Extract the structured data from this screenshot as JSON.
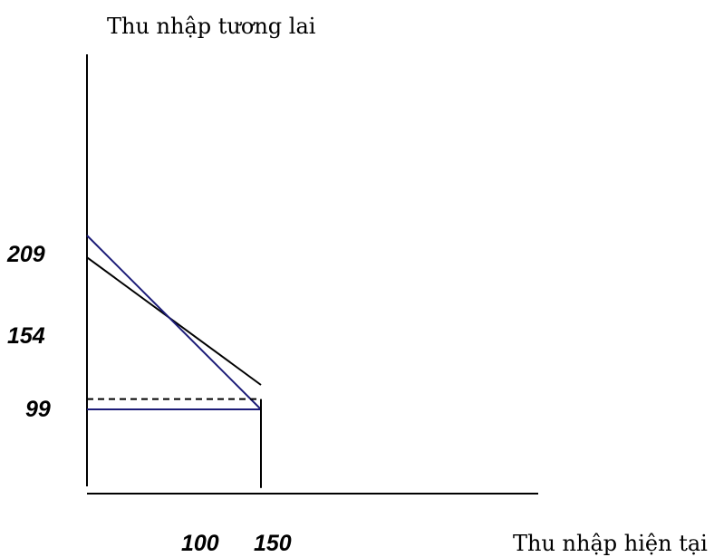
{
  "chart_data": {
    "type": "line",
    "title": "",
    "ylabel": "Thu nhập tương lai",
    "xlabel": "Thu nhập hiện tại",
    "y_ticks": [
      209,
      154,
      99
    ],
    "x_ticks": [
      100,
      150
    ],
    "grid": false,
    "series": [
      {
        "color": "#000000",
        "style": "solid",
        "points": [
          [
            0,
            209
          ],
          [
            150,
            110
          ]
        ]
      },
      {
        "color": "#1c1c78",
        "style": "solid",
        "points": [
          [
            0,
            226
          ],
          [
            150,
            91
          ]
        ]
      },
      {
        "color": "#1c1c78",
        "style": "solid",
        "points": [
          [
            0,
            91
          ],
          [
            150,
            91
          ]
        ]
      },
      {
        "color": "#000000",
        "style": "dashed",
        "points": [
          [
            0,
            99
          ],
          [
            150,
            99
          ]
        ]
      },
      {
        "color": "#000000",
        "style": "solid",
        "points": [
          [
            150,
            99
          ],
          [
            150,
            30
          ]
        ]
      }
    ]
  }
}
